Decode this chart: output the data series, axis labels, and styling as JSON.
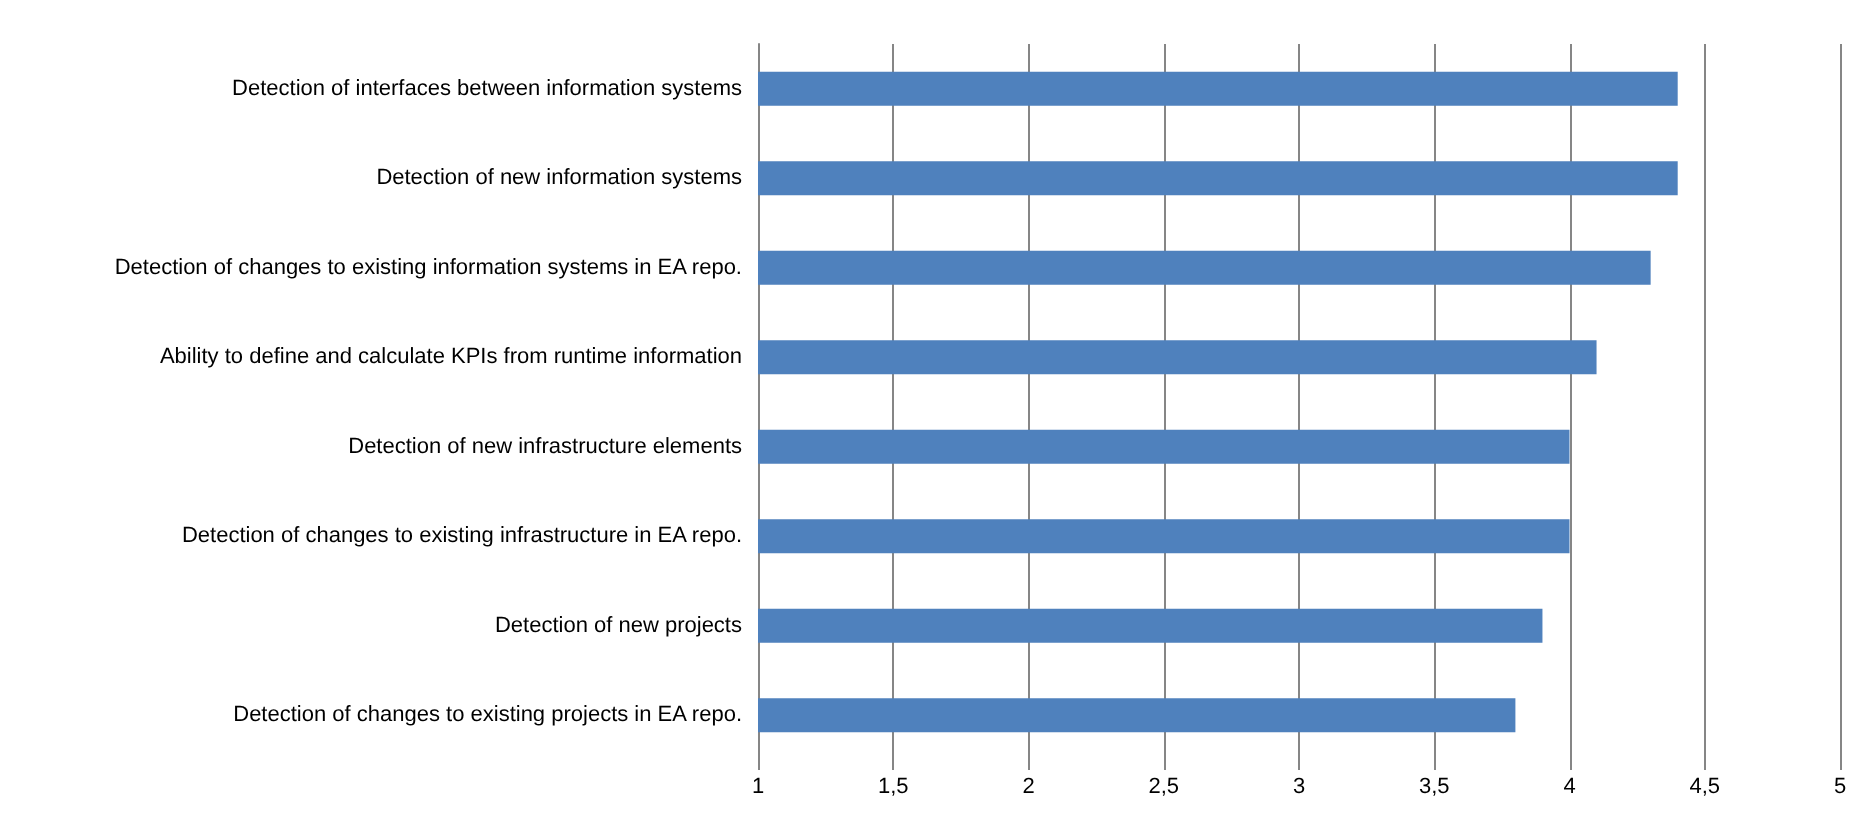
{
  "chart_data": {
    "type": "bar",
    "orientation": "horizontal",
    "categories": [
      "Detection of interfaces between information systems",
      "Detection of new information systems",
      "Detection of changes to existing information systems in EA repo.",
      "Ability to define and calculate KPIs from runtime information",
      "Detection of new infrastructure elements",
      "Detection of changes to existing infrastructure in EA repo.",
      "Detection of new projects",
      "Detection of changes to existing projects in EA repo."
    ],
    "values": [
      4.4,
      4.4,
      4.3,
      4.1,
      4.0,
      4.0,
      3.9,
      3.8
    ],
    "color": "#4f81bd",
    "xlim": [
      1,
      5
    ],
    "xticks": [
      1,
      {
        "value": 1.5,
        "label": "1,5"
      },
      2,
      {
        "value": 2.5,
        "label": "2,5"
      },
      3,
      {
        "value": 3.5,
        "label": "3,5"
      },
      4,
      {
        "value": 4.5,
        "label": "4,5"
      },
      5
    ],
    "grid": "x"
  }
}
